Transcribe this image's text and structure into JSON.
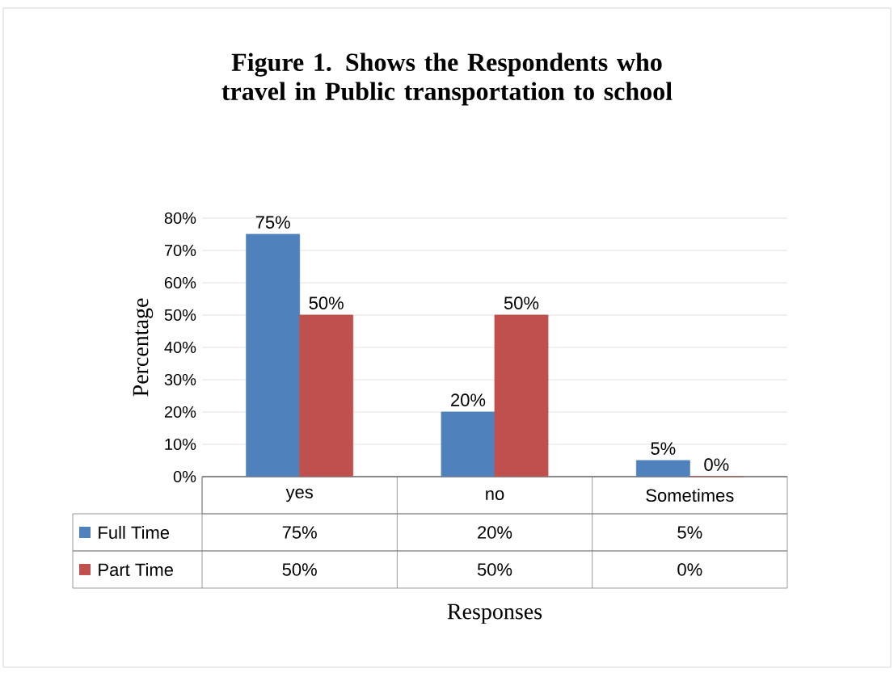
{
  "chart_data": {
    "type": "bar",
    "title": "Figure 1. Shows the Respondents who travel in Public transportation to school",
    "xlabel": "Responses",
    "ylabel": "Percentage",
    "categories": [
      "yes",
      "no",
      "Sometimes"
    ],
    "series": [
      {
        "name": "Full Time",
        "color": "#4f81bd",
        "values": [
          75,
          20,
          5
        ],
        "value_labels": [
          "75%",
          "20%",
          "5%"
        ]
      },
      {
        "name": "Part Time",
        "color": "#c0504d",
        "values": [
          50,
          50,
          0
        ],
        "value_labels": [
          "50%",
          "50%",
          "0%"
        ]
      }
    ],
    "ylim": [
      0,
      80
    ],
    "yticks": [
      {
        "value": 0,
        "label": "0%"
      },
      {
        "value": 10,
        "label": "10%"
      },
      {
        "value": 20,
        "label": "20%"
      },
      {
        "value": 30,
        "label": "30%"
      },
      {
        "value": 40,
        "label": "40%"
      },
      {
        "value": 50,
        "label": "50%"
      },
      {
        "value": 60,
        "label": "60%"
      },
      {
        "value": 70,
        "label": "70%"
      },
      {
        "value": 80,
        "label": "80%"
      }
    ],
    "grid": "y",
    "legend": "bottom"
  }
}
